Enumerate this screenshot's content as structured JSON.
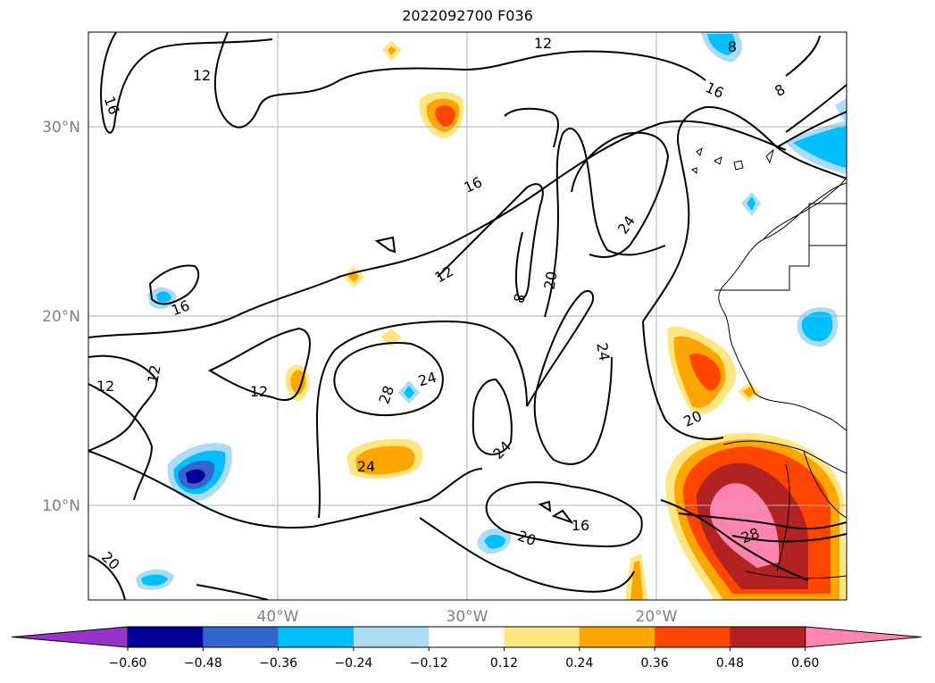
{
  "title": "2022092700 F036",
  "lat_labels": [
    "30°N",
    "20°N",
    "10°N"
  ],
  "lon_labels": [
    "40°W",
    "30°W",
    "20°W"
  ],
  "contour_labels": [
    "12",
    "16",
    "16",
    "8",
    "8",
    "12",
    "16",
    "12",
    "8",
    "20",
    "24",
    "12",
    "16",
    "12",
    "12",
    "24",
    "28",
    "24",
    "24",
    "20",
    "24",
    "16",
    "20",
    "20",
    "28",
    "20"
  ],
  "colorbar": {
    "colors": [
      "#9933cc",
      "#000099",
      "#3366cc",
      "#00bfff",
      "#aadcf5",
      "#ffffff",
      "#ffe680",
      "#ffa500",
      "#ff4500",
      "#b22222",
      "#ff85b0"
    ],
    "labels": [
      "−0.60",
      "−0.48",
      "−0.36",
      "−0.24",
      "−0.12",
      "0.12",
      "0.24",
      "0.36",
      "0.48",
      "0.60"
    ]
  },
  "colors": {
    "grid": "#b0b0b0",
    "contour": "#000000",
    "axis_label": "#808080"
  }
}
